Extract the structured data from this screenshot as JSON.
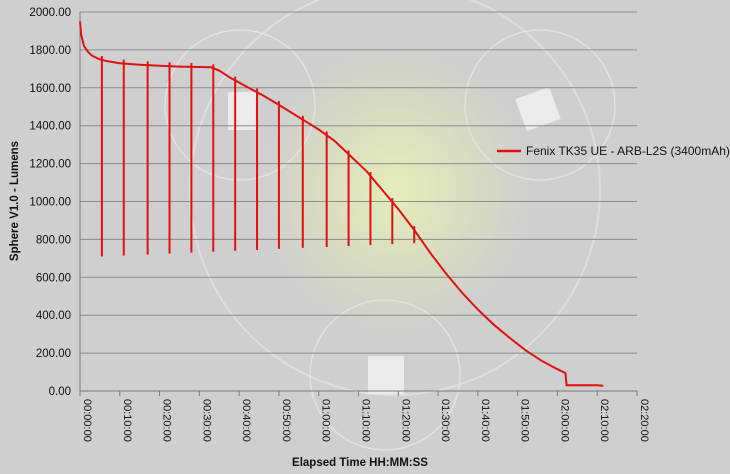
{
  "chart_data": {
    "type": "line",
    "title": "",
    "xlabel": "Elapsed Time HH:MM:SS",
    "ylabel": "Sphere V1.0 - Lumens",
    "ylim": [
      0,
      2000
    ],
    "xlim_minutes": [
      0,
      140
    ],
    "y_ticks": [
      "0.00",
      "200.00",
      "400.00",
      "600.00",
      "800.00",
      "1000.00",
      "1200.00",
      "1400.00",
      "1600.00",
      "1800.00",
      "2000.00"
    ],
    "x_ticks": [
      "00:00:00",
      "00:10:00",
      "00:20:00",
      "00:30:00",
      "00:40:00",
      "00:50:00",
      "01:00:00",
      "01:10:00",
      "01:20:00",
      "01:30:00",
      "01:40:00",
      "01:50:00",
      "02:00:00",
      "02:10:00",
      "02:20:00"
    ],
    "grid": "horizontal",
    "legend_position": "right",
    "series": [
      {
        "name": "Fenix TK35 UE - ARB-L2S (3400mAh)",
        "color": "#e01010",
        "points": [
          [
            0,
            1950
          ],
          [
            0.3,
            1880
          ],
          [
            1,
            1820
          ],
          [
            2,
            1790
          ],
          [
            3,
            1770
          ],
          [
            5,
            1750
          ],
          [
            7,
            1740
          ],
          [
            10,
            1730
          ],
          [
            15,
            1722
          ],
          [
            20,
            1716
          ],
          [
            25,
            1712
          ],
          [
            30,
            1710
          ],
          [
            33,
            1708
          ],
          [
            35,
            1690
          ],
          [
            38,
            1650
          ],
          [
            42,
            1605
          ],
          [
            46,
            1560
          ],
          [
            50,
            1510
          ],
          [
            55,
            1445
          ],
          [
            60,
            1380
          ],
          [
            64,
            1320
          ],
          [
            68,
            1240
          ],
          [
            72,
            1160
          ],
          [
            76,
            1060
          ],
          [
            80,
            960
          ],
          [
            84,
            850
          ],
          [
            88,
            730
          ],
          [
            92,
            620
          ],
          [
            96,
            520
          ],
          [
            100,
            430
          ],
          [
            104,
            350
          ],
          [
            108,
            280
          ],
          [
            112,
            215
          ],
          [
            116,
            160
          ],
          [
            120,
            115
          ],
          [
            122,
            95
          ],
          [
            122.3,
            30
          ],
          [
            130,
            30
          ],
          [
            131.5,
            28
          ]
        ],
        "flicker_minutes": [
          5.5,
          11,
          17,
          22.5,
          28,
          33.5,
          39,
          44.5,
          50,
          56,
          62,
          67.5,
          73,
          78.5,
          84
        ]
      }
    ]
  }
}
